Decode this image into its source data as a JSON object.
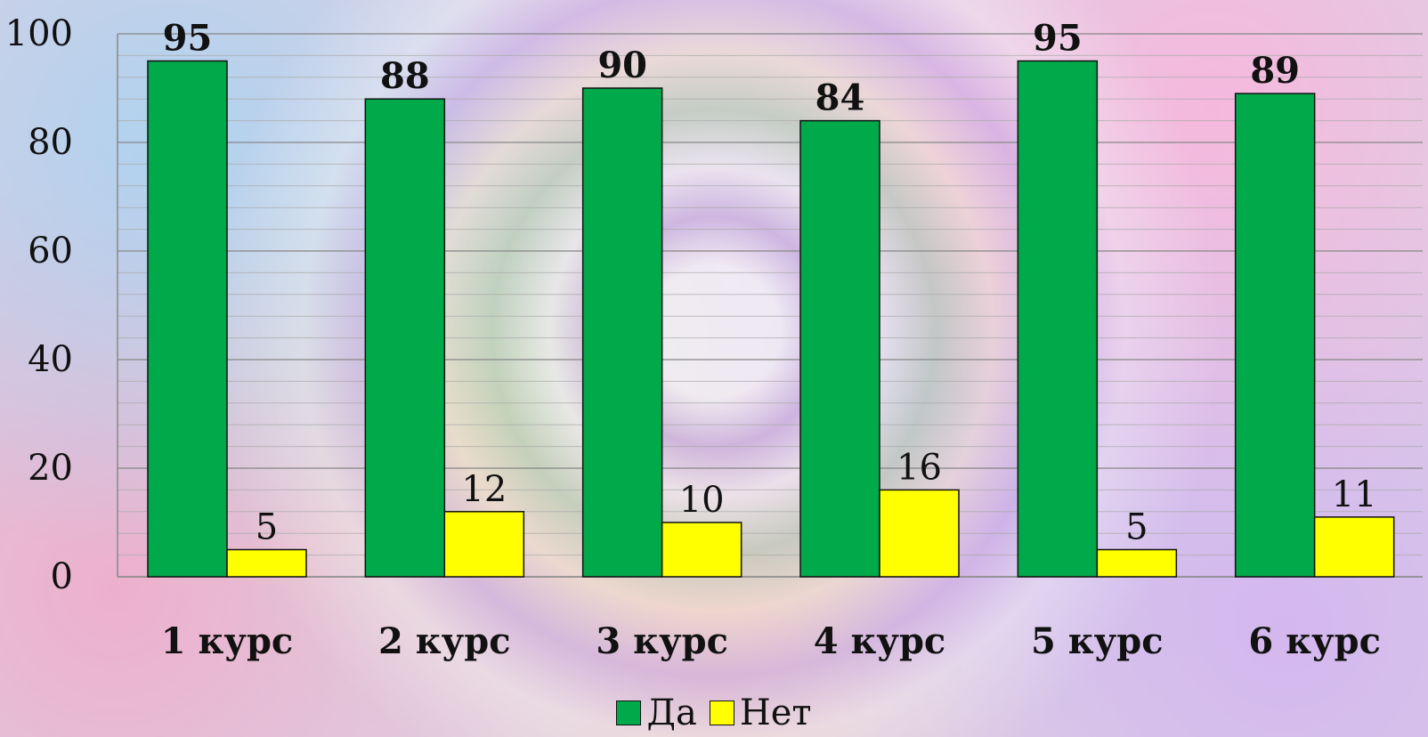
{
  "chart_data": {
    "type": "bar",
    "categories": [
      "1 курс",
      "2 курс",
      "3 курс",
      "4 курс",
      "5 курс",
      "6 курс"
    ],
    "series": [
      {
        "name": "Да",
        "values": [
          95,
          88,
          90,
          84,
          95,
          89
        ],
        "color": "#00a94a"
      },
      {
        "name": "Нет",
        "values": [
          5,
          12,
          10,
          16,
          5,
          11
        ],
        "color": "#ffff00"
      }
    ],
    "ylim": [
      0,
      100
    ],
    "y_ticks": [
      "0",
      "20",
      "40",
      "60",
      "80",
      "100"
    ],
    "minor_grid_step": 4,
    "grid": true,
    "legend_position": "bottom"
  }
}
